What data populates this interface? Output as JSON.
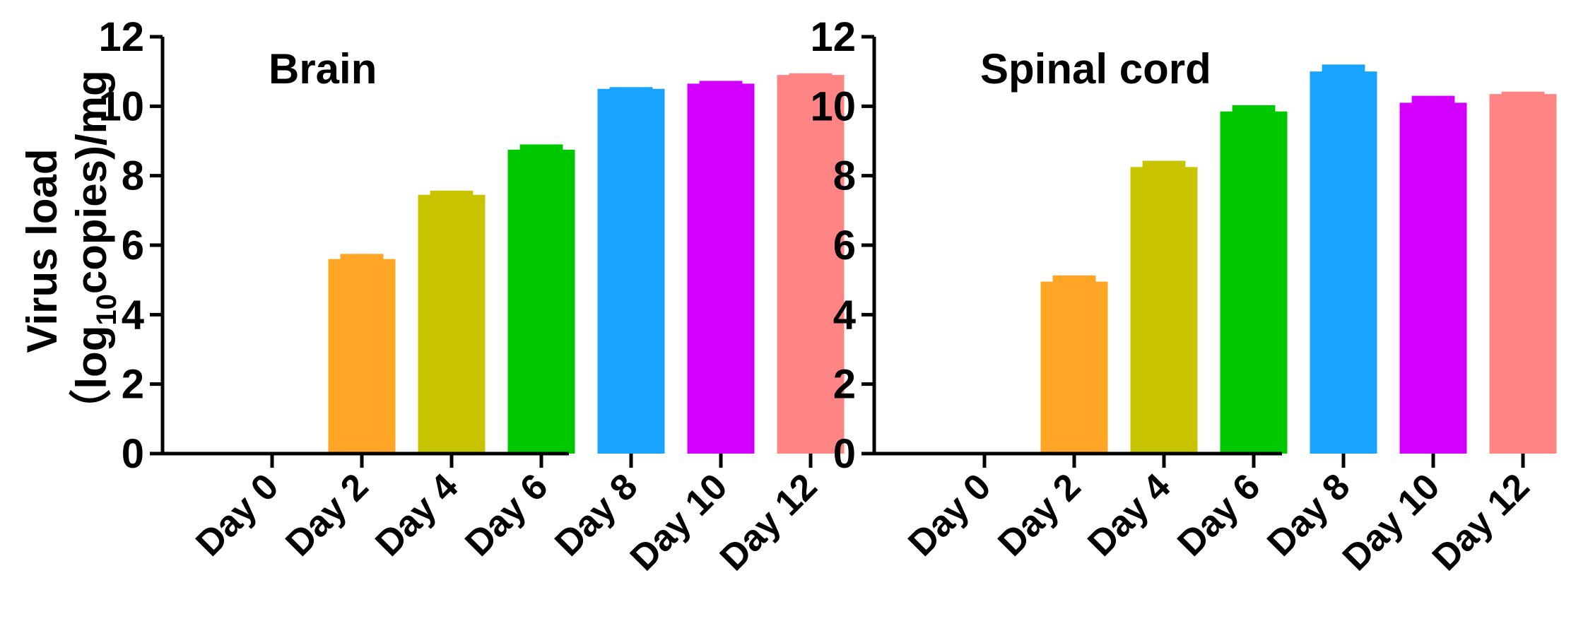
{
  "chart_data": [
    {
      "type": "bar",
      "title": "Brain",
      "ylabel": "Virus load (log10copies)/mg",
      "categories": [
        "Day 0",
        "Day 2",
        "Day 4",
        "Day 6",
        "Day 8",
        "Day 10",
        "Day 12"
      ],
      "values": [
        0,
        5.6,
        7.45,
        8.75,
        10.5,
        10.65,
        10.9
      ],
      "errors": [
        0,
        0.15,
        0.12,
        0.15,
        0.05,
        0.08,
        0.05
      ],
      "colors": [
        "#ffffff",
        "#ffa526",
        "#c9c400",
        "#00c800",
        "#18a3ff",
        "#d400ff",
        "#ff8585"
      ],
      "ylim": [
        0,
        12
      ],
      "yticks": [
        0,
        2,
        4,
        6,
        8,
        10,
        12
      ]
    },
    {
      "type": "bar",
      "title": "Spinal cord",
      "categories": [
        "Day 0",
        "Day 2",
        "Day 4",
        "Day 6",
        "Day 8",
        "Day 10",
        "Day 12"
      ],
      "values": [
        0,
        4.95,
        8.25,
        9.85,
        11.0,
        10.1,
        10.35
      ],
      "errors": [
        0,
        0.18,
        0.18,
        0.18,
        0.2,
        0.2,
        0.07
      ],
      "colors": [
        "#ffffff",
        "#ffa526",
        "#c9c400",
        "#00c800",
        "#18a3ff",
        "#d400ff",
        "#ff8585"
      ],
      "ylim": [
        0,
        12
      ],
      "yticks": [
        0,
        2,
        4,
        6,
        8,
        10,
        12
      ]
    }
  ],
  "ylabel_lines": [
    "Virus load",
    "（log",
    "10",
    "copies)/mg"
  ]
}
